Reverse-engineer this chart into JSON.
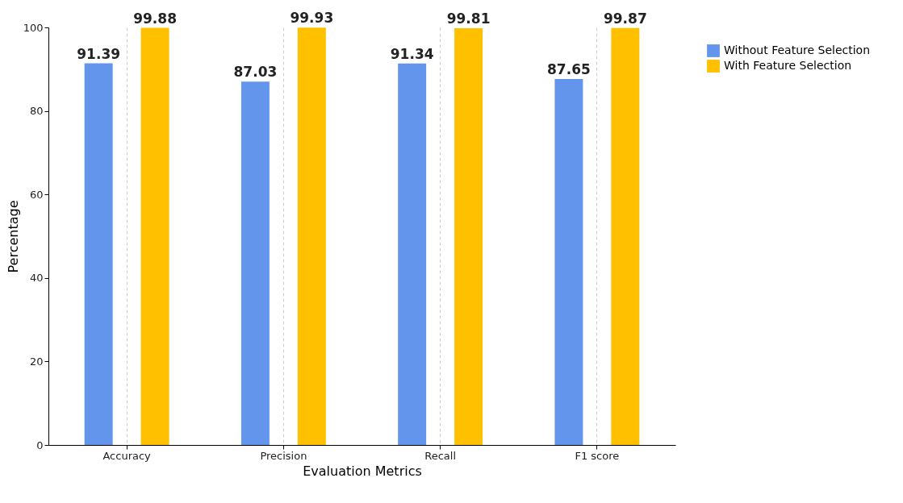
{
  "chart_data": {
    "type": "bar",
    "xlabel": "Evaluation Metrics",
    "ylabel": "Percentage",
    "categories": [
      "Accuracy",
      "Precision",
      "Recall",
      "F1 score"
    ],
    "series": [
      {
        "name": "Without Feature Selection",
        "color": "#6495ed",
        "values": [
          91.39,
          87.03,
          91.34,
          87.65
        ]
      },
      {
        "name": "With Feature Selection",
        "color": "#ffc000",
        "values": [
          99.88,
          99.93,
          99.81,
          99.87
        ]
      }
    ],
    "ylim": [
      0,
      100
    ],
    "yticks": [
      0,
      20,
      40,
      60,
      80,
      100
    ],
    "grid": "x",
    "legend": "right",
    "data_labels": true
  }
}
